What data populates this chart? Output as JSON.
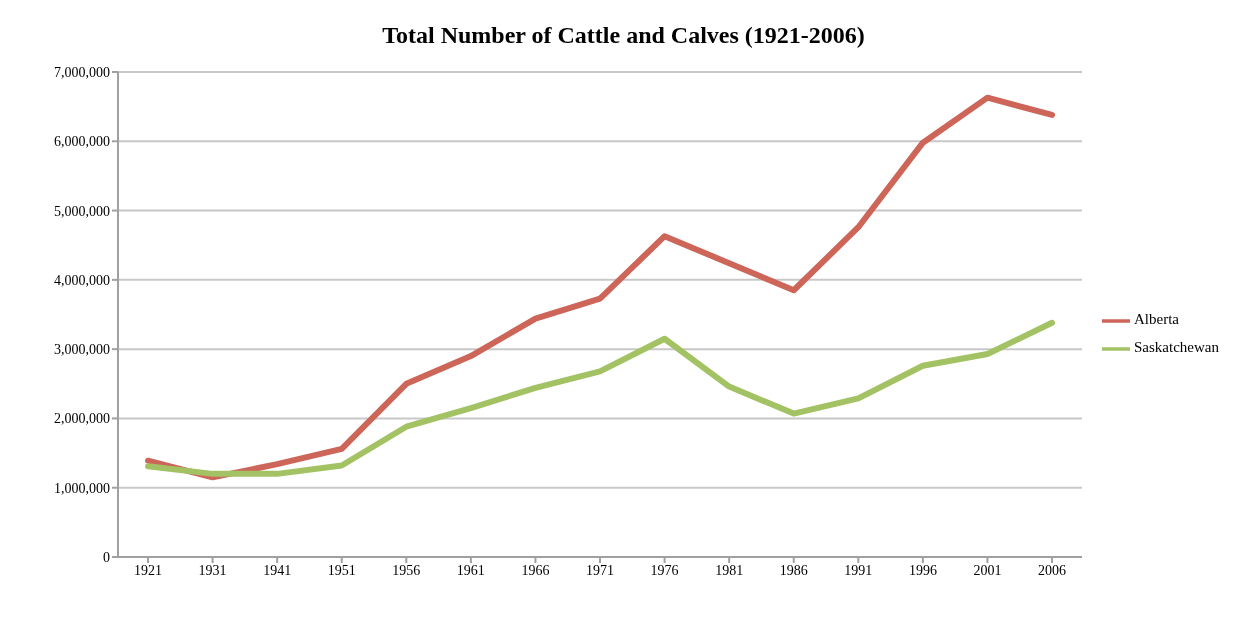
{
  "chart_data": {
    "type": "line",
    "title": "Total Number of Cattle and Calves (1921-2006)",
    "categories": [
      "1921",
      "1931",
      "1941",
      "1951",
      "1956",
      "1961",
      "1966",
      "1971",
      "1976",
      "1981",
      "1986",
      "1991",
      "1996",
      "2001",
      "2006"
    ],
    "series": [
      {
        "name": "Alberta",
        "color": "#cd6558",
        "values": [
          1390000,
          1150000,
          1340000,
          1560000,
          2500000,
          2900000,
          3440000,
          3730000,
          4630000,
          4240000,
          3850000,
          4760000,
          5980000,
          6630000,
          6380000
        ]
      },
      {
        "name": "Saskatchewan",
        "color": "#a3c264",
        "values": [
          1310000,
          1200000,
          1200000,
          1320000,
          1880000,
          2150000,
          2440000,
          2680000,
          3150000,
          2460000,
          2070000,
          2290000,
          2760000,
          2930000,
          3380000
        ]
      }
    ],
    "ylim": [
      0,
      7000000
    ],
    "yticks": [
      0,
      {
        "value": 1000000,
        "label": "1,000,000"
      },
      {
        "value": 2000000,
        "label": "2,000,000"
      },
      {
        "value": 3000000,
        "label": "3,000,000"
      },
      {
        "value": 4000000,
        "label": "4,000,000"
      },
      {
        "value": 5000000,
        "label": "5,000,000"
      },
      {
        "value": 6000000,
        "label": "6,000,000"
      },
      {
        "value": 7000000,
        "label": "7,000,000"
      }
    ],
    "grid": "y",
    "legend": "right",
    "marker": "none",
    "line_style": "solid"
  }
}
